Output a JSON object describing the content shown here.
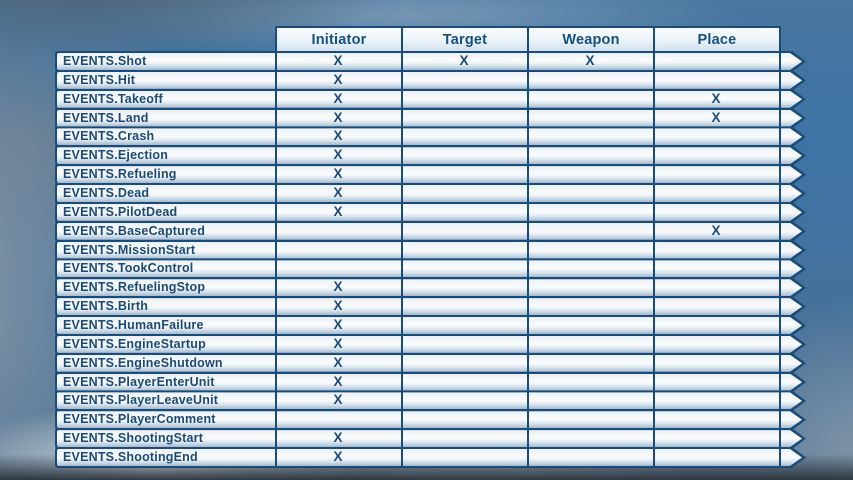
{
  "colors": {
    "sky_blue": "#3e73a6",
    "table_border": "#1a4c7a",
    "text_dark_blue": "#1b4a76"
  },
  "chart_data": {
    "type": "table",
    "columns": [
      "Initiator",
      "Target",
      "Weapon",
      "Place"
    ],
    "rows": [
      {
        "event": "EVENTS.Shot",
        "initiator": "X",
        "target": "X",
        "weapon": "X",
        "place": ""
      },
      {
        "event": "EVENTS.Hit",
        "initiator": "X",
        "target": "",
        "weapon": "",
        "place": ""
      },
      {
        "event": "EVENTS.Takeoff",
        "initiator": "X",
        "target": "",
        "weapon": "",
        "place": "X"
      },
      {
        "event": "EVENTS.Land",
        "initiator": "X",
        "target": "",
        "weapon": "",
        "place": "X"
      },
      {
        "event": "EVENTS.Crash",
        "initiator": "X",
        "target": "",
        "weapon": "",
        "place": ""
      },
      {
        "event": "EVENTS.Ejection",
        "initiator": "X",
        "target": "",
        "weapon": "",
        "place": ""
      },
      {
        "event": "EVENTS.Refueling",
        "initiator": "X",
        "target": "",
        "weapon": "",
        "place": ""
      },
      {
        "event": "EVENTS.Dead",
        "initiator": "X",
        "target": "",
        "weapon": "",
        "place": ""
      },
      {
        "event": "EVENTS.PilotDead",
        "initiator": "X",
        "target": "",
        "weapon": "",
        "place": ""
      },
      {
        "event": "EVENTS.BaseCaptured",
        "initiator": "",
        "target": "",
        "weapon": "",
        "place": "X"
      },
      {
        "event": "EVENTS.MissionStart",
        "initiator": "",
        "target": "",
        "weapon": "",
        "place": ""
      },
      {
        "event": "EVENTS.TookControl",
        "initiator": "",
        "target": "",
        "weapon": "",
        "place": ""
      },
      {
        "event": "EVENTS.RefuelingStop",
        "initiator": "X",
        "target": "",
        "weapon": "",
        "place": ""
      },
      {
        "event": "EVENTS.Birth",
        "initiator": "X",
        "target": "",
        "weapon": "",
        "place": ""
      },
      {
        "event": "EVENTS.HumanFailure",
        "initiator": "X",
        "target": "",
        "weapon": "",
        "place": ""
      },
      {
        "event": "EVENTS.EngineStartup",
        "initiator": "X",
        "target": "",
        "weapon": "",
        "place": ""
      },
      {
        "event": "EVENTS.EngineShutdown",
        "initiator": "X",
        "target": "",
        "weapon": "",
        "place": ""
      },
      {
        "event": "EVENTS.PlayerEnterUnit",
        "initiator": "X",
        "target": "",
        "weapon": "",
        "place": ""
      },
      {
        "event": "EVENTS.PlayerLeaveUnit",
        "initiator": "X",
        "target": "",
        "weapon": "",
        "place": ""
      },
      {
        "event": "EVENTS.PlayerComment",
        "initiator": "",
        "target": "",
        "weapon": "",
        "place": ""
      },
      {
        "event": "EVENTS.ShootingStart",
        "initiator": "X",
        "target": "",
        "weapon": "",
        "place": ""
      },
      {
        "event": "EVENTS.ShootingEnd",
        "initiator": "X",
        "target": "",
        "weapon": "",
        "place": ""
      }
    ]
  }
}
